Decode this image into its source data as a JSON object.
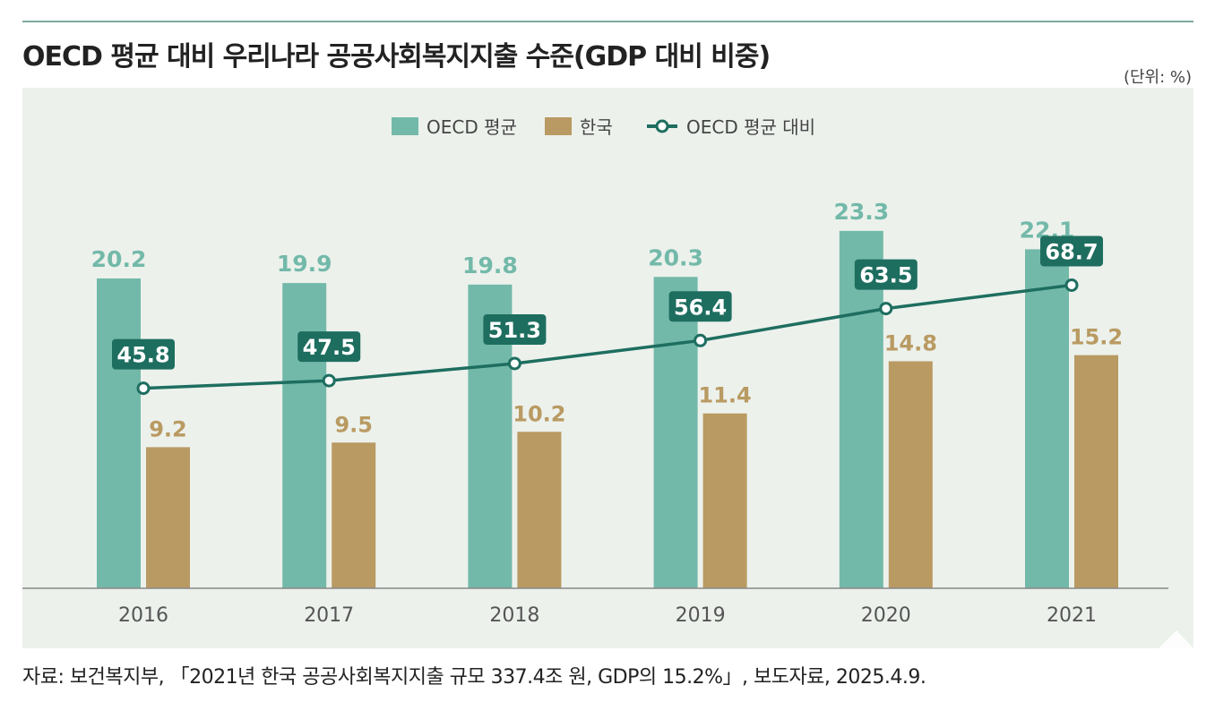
{
  "title": "OECD 평균 대비 우리나라 공공사회복지지출 수준(GDP 대비 비중)",
  "unit": "(단위: %)",
  "source": "자료: 보건복지부, 「2021년 한국 공공사회복지지출 규모 337.4조 원, GDP의 15.2%」, 보도자료, 2025.4.9.",
  "colors": {
    "oecd": "#73b9a9",
    "korea": "#b99a62",
    "ratio": "#1e6e60",
    "panel": "#ecf1ec",
    "axis": "#888888"
  },
  "legend": {
    "oecd": "OECD 평균",
    "korea": "한국",
    "ratio": "OECD 평균 대비"
  },
  "chart_data": {
    "type": "bar",
    "categories": [
      "2016",
      "2017",
      "2018",
      "2019",
      "2020",
      "2021"
    ],
    "series": [
      {
        "name": "OECD 평균",
        "type": "bar",
        "values": [
          20.2,
          19.9,
          19.8,
          20.3,
          23.3,
          22.1
        ]
      },
      {
        "name": "한국",
        "type": "bar",
        "values": [
          9.2,
          9.5,
          10.2,
          11.4,
          14.8,
          15.2
        ]
      },
      {
        "name": "OECD 평균 대비",
        "type": "line",
        "values": [
          45.8,
          47.5,
          51.3,
          56.4,
          63.5,
          68.7
        ]
      }
    ],
    "legend_position": "top-center",
    "grid": false
  }
}
